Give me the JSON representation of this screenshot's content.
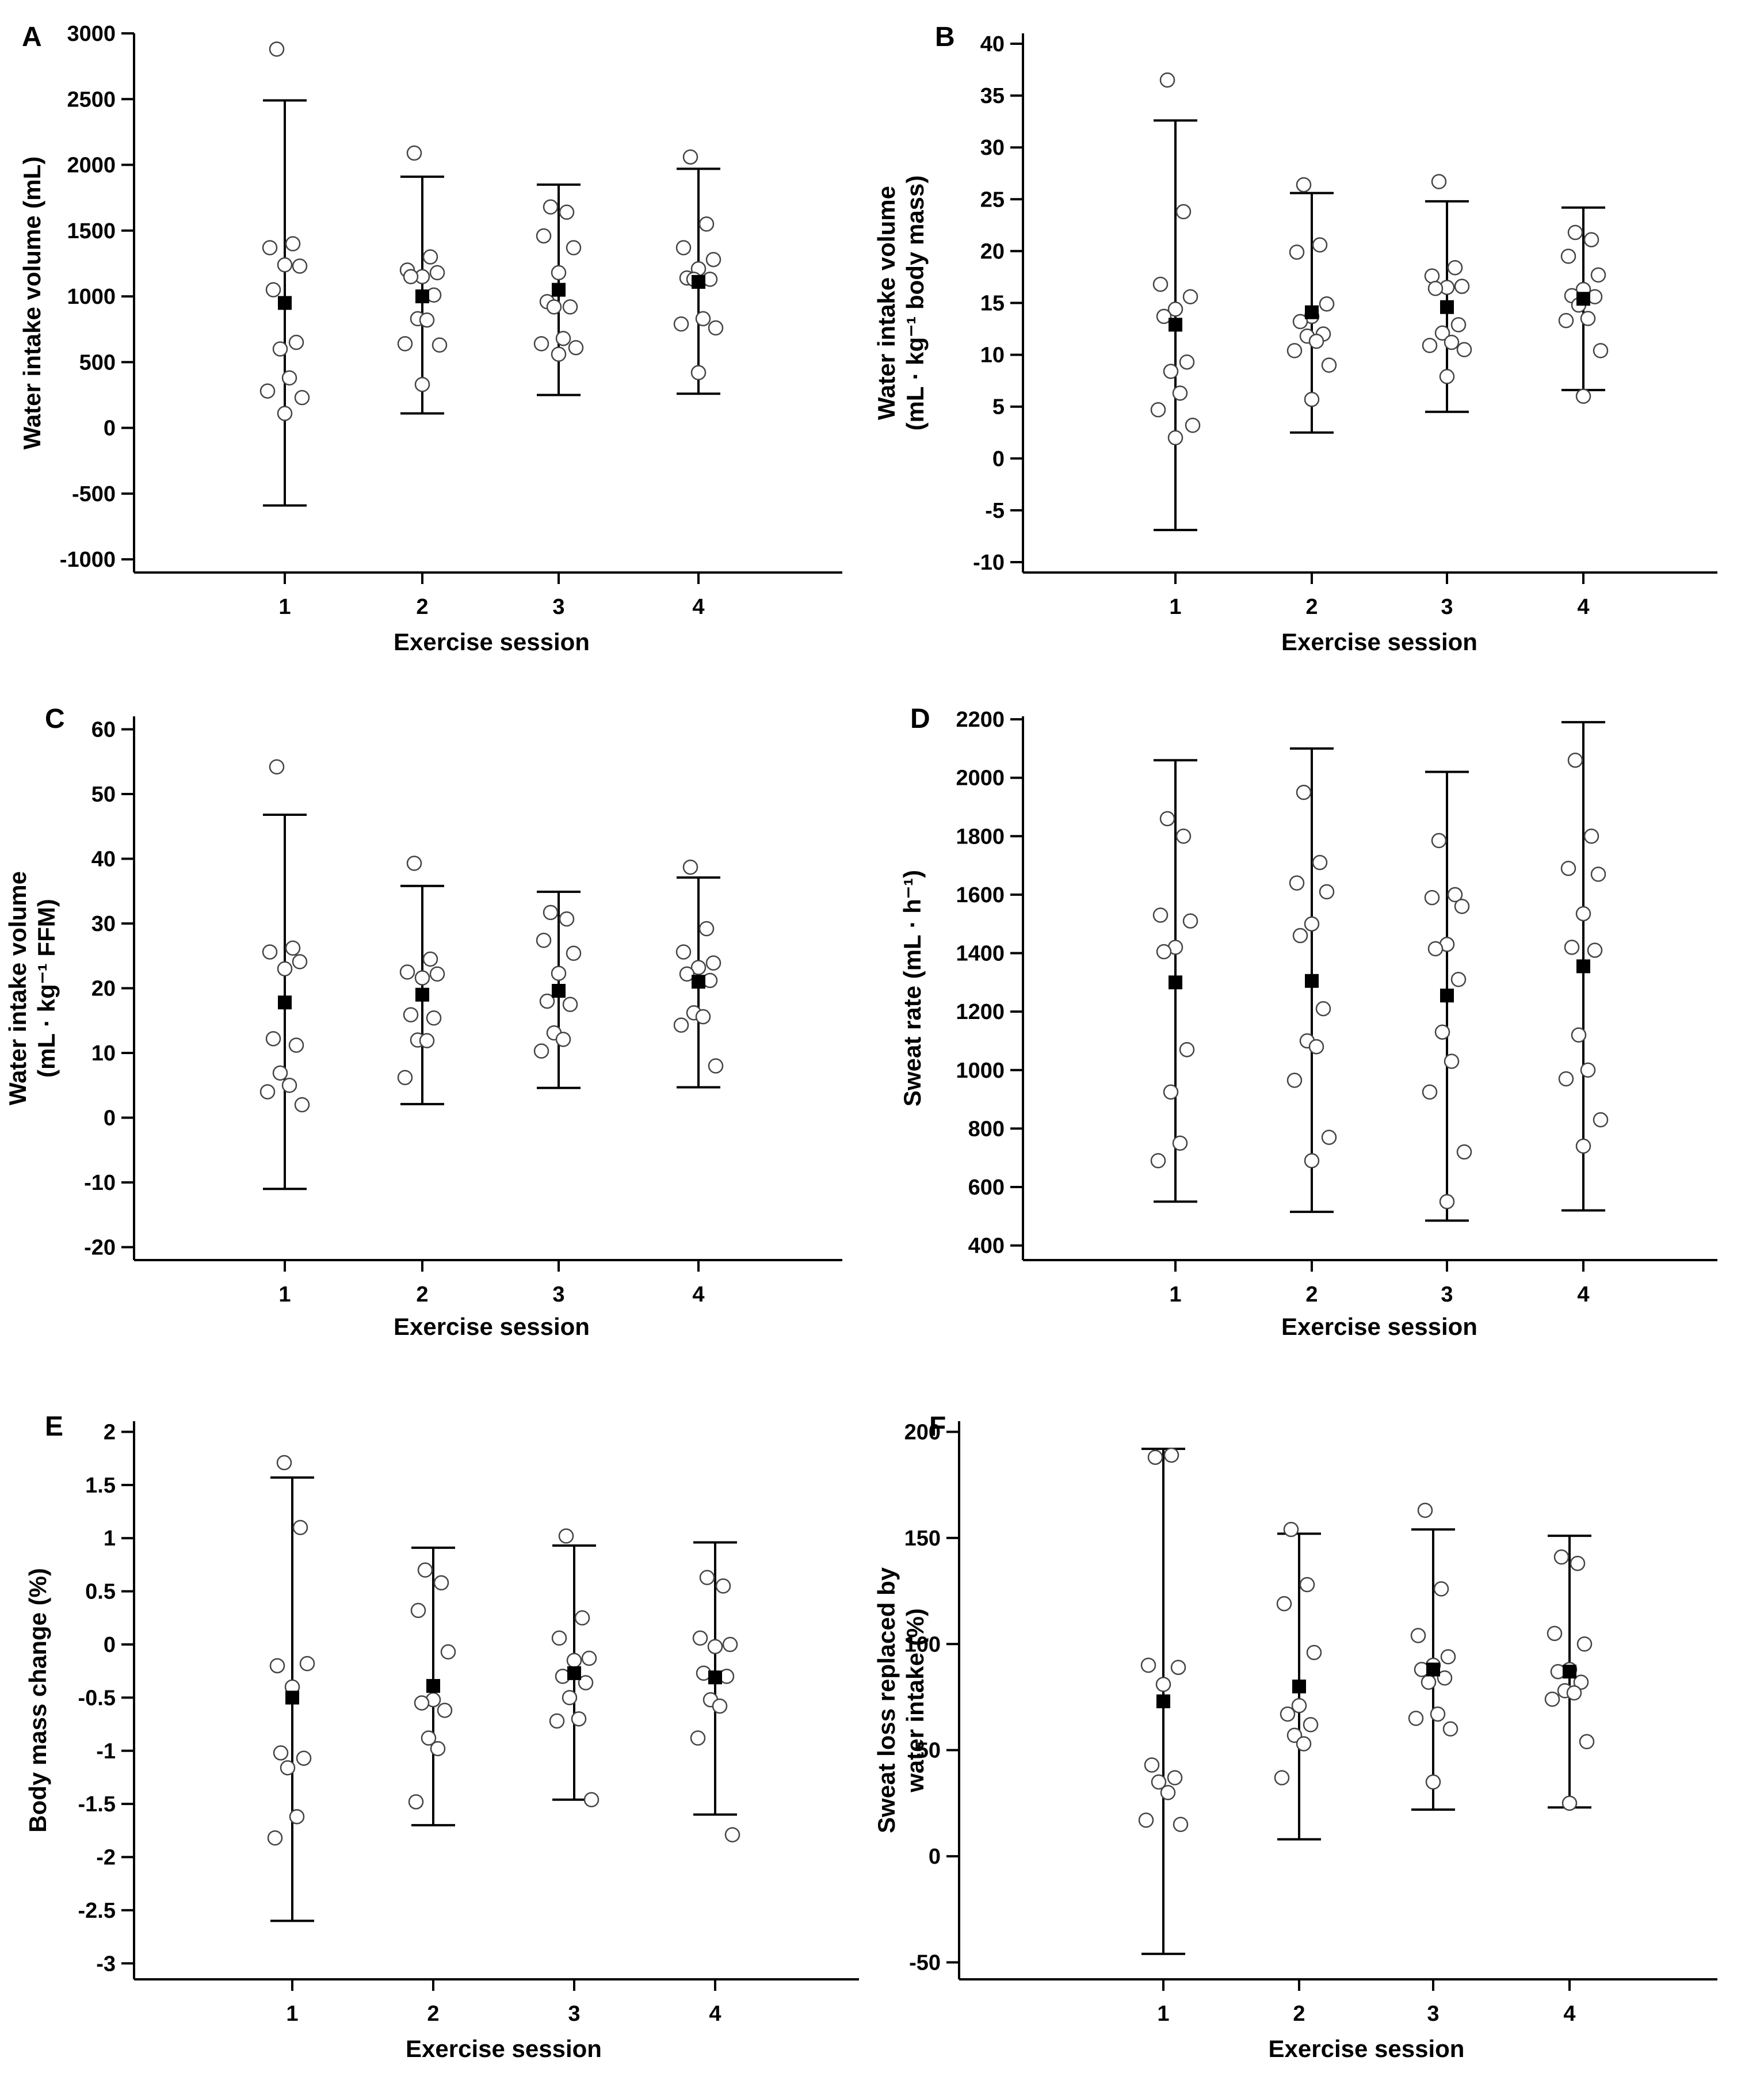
{
  "chart_data": [
    {
      "panel": "A",
      "type": "scatter",
      "xlabel": "Exercise session",
      "ylabel": [
        "Water intake volume (mL)"
      ],
      "categories": [
        "1",
        "2",
        "3",
        "4"
      ],
      "ylim": [
        -1100,
        3000
      ],
      "yticks": [
        3000,
        2500,
        2000,
        1500,
        1000,
        500,
        0,
        -500,
        -1000
      ],
      "summary": [
        {
          "session": "1",
          "mean": 950,
          "upper": 2490,
          "lower": -590
        },
        {
          "session": "2",
          "mean": 1000,
          "upper": 1910,
          "lower": 110
        },
        {
          "session": "3",
          "mean": 1050,
          "upper": 1850,
          "lower": 250
        },
        {
          "session": "4",
          "mean": 1110,
          "upper": 1970,
          "lower": 260
        }
      ],
      "points": [
        {
          "session": "1",
          "values": [
            2880,
            1400,
            1370,
            1230,
            1240,
            1050,
            650,
            600,
            380,
            280,
            230,
            110
          ]
        },
        {
          "session": "2",
          "values": [
            2090,
            1300,
            1200,
            1180,
            1150,
            1150,
            1010,
            830,
            820,
            640,
            630,
            330
          ]
        },
        {
          "session": "3",
          "values": [
            1680,
            1640,
            1460,
            1370,
            1180,
            960,
            920,
            920,
            680,
            640,
            610,
            560
          ]
        },
        {
          "session": "4",
          "values": [
            2060,
            1550,
            1370,
            1280,
            1210,
            1140,
            1130,
            1130,
            830,
            790,
            760,
            420
          ]
        }
      ]
    },
    {
      "panel": "B",
      "type": "scatter",
      "xlabel": "Exercise session",
      "ylabel": [
        "Water intake volume",
        "(mL · kg⁻¹ body mass)"
      ],
      "categories": [
        "1",
        "2",
        "3",
        "4"
      ],
      "ylim": [
        -11,
        41
      ],
      "yticks": [
        40,
        35,
        30,
        25,
        20,
        15,
        10,
        5,
        0,
        -5,
        -10
      ],
      "summary": [
        {
          "session": "1",
          "mean": 12.9,
          "upper": 32.6,
          "lower": -6.9
        },
        {
          "session": "2",
          "mean": 14.1,
          "upper": 25.6,
          "lower": 2.5
        },
        {
          "session": "3",
          "mean": 14.6,
          "upper": 24.8,
          "lower": 4.5
        },
        {
          "session": "4",
          "mean": 15.4,
          "upper": 24.2,
          "lower": 6.6
        }
      ],
      "points": [
        {
          "session": "1",
          "values": [
            36.5,
            23.8,
            16.8,
            15.6,
            14.4,
            13.7,
            9.3,
            8.4,
            6.3,
            4.7,
            3.2,
            2.0
          ]
        },
        {
          "session": "2",
          "values": [
            26.4,
            20.6,
            19.9,
            14.9,
            13.7,
            13.2,
            12.0,
            11.8,
            11.3,
            10.4,
            9.0,
            5.7
          ]
        },
        {
          "session": "3",
          "values": [
            26.7,
            18.4,
            17.6,
            16.6,
            16.5,
            16.4,
            12.9,
            12.1,
            11.2,
            10.9,
            10.5,
            7.9
          ]
        },
        {
          "session": "4",
          "values": [
            21.8,
            21.1,
            19.5,
            17.7,
            16.3,
            15.7,
            15.6,
            14.8,
            13.5,
            13.3,
            10.4,
            6.0
          ]
        }
      ]
    },
    {
      "panel": "C",
      "type": "scatter",
      "xlabel": "Exercise session",
      "ylabel": [
        "Water intake volume",
        "(mL · kg⁻¹ FFM)"
      ],
      "categories": [
        "1",
        "2",
        "3",
        "4"
      ],
      "ylim": [
        -22,
        62
      ],
      "yticks": [
        60,
        50,
        40,
        30,
        20,
        10,
        0,
        -10,
        -20
      ],
      "summary": [
        {
          "session": "1",
          "mean": 17.8,
          "upper": 46.8,
          "lower": -11.0
        },
        {
          "session": "2",
          "mean": 19.0,
          "upper": 35.8,
          "lower": 2.1
        },
        {
          "session": "3",
          "mean": 19.6,
          "upper": 34.9,
          "lower": 4.6
        },
        {
          "session": "4",
          "mean": 21.0,
          "upper": 37.1,
          "lower": 4.7
        }
      ],
      "points": [
        {
          "session": "1",
          "values": [
            54.2,
            26.2,
            25.6,
            24.1,
            23.0,
            12.2,
            11.2,
            6.9,
            5.0,
            4.0,
            2.0
          ]
        },
        {
          "session": "2",
          "values": [
            39.3,
            24.5,
            22.5,
            22.2,
            21.6,
            15.9,
            15.4,
            12.0,
            11.9,
            6.2
          ]
        },
        {
          "session": "3",
          "values": [
            31.7,
            30.7,
            27.4,
            25.4,
            22.3,
            18.0,
            17.5,
            13.1,
            12.1,
            10.3
          ]
        },
        {
          "session": "4",
          "values": [
            38.7,
            29.2,
            25.6,
            23.9,
            23.2,
            22.2,
            21.2,
            16.2,
            15.6,
            14.3,
            8.0
          ]
        }
      ]
    },
    {
      "panel": "D",
      "type": "scatter",
      "xlabel": "Exercise session",
      "ylabel": [
        "Sweat rate (mL · h⁻¹)"
      ],
      "categories": [
        "1",
        "2",
        "3",
        "4"
      ],
      "ylim": [
        350,
        2210
      ],
      "yticks": [
        2200,
        2000,
        1800,
        1600,
        1400,
        1200,
        1000,
        800,
        600,
        400
      ],
      "summary": [
        {
          "session": "1",
          "mean": 1300,
          "upper": 2060,
          "lower": 550
        },
        {
          "session": "2",
          "mean": 1305,
          "upper": 2100,
          "lower": 515
        },
        {
          "session": "3",
          "mean": 1255,
          "upper": 2020,
          "lower": 485
        },
        {
          "session": "4",
          "mean": 1355,
          "upper": 2190,
          "lower": 520
        }
      ],
      "points": [
        {
          "session": "1",
          "values": [
            1860,
            1800,
            1530,
            1510,
            1420,
            1405,
            1070,
            925,
            750,
            690
          ]
        },
        {
          "session": "2",
          "values": [
            1950,
            1710,
            1640,
            1610,
            1500,
            1460,
            1210,
            1100,
            1080,
            965,
            770,
            690
          ]
        },
        {
          "session": "3",
          "values": [
            1785,
            1600,
            1590,
            1560,
            1430,
            1415,
            1310,
            1130,
            1030,
            925,
            720,
            550
          ]
        },
        {
          "session": "4",
          "values": [
            2060,
            1800,
            1690,
            1670,
            1535,
            1420,
            1410,
            1120,
            1000,
            970,
            830,
            740
          ]
        }
      ]
    },
    {
      "panel": "E",
      "type": "scatter",
      "xlabel": "Exercise session",
      "ylabel": [
        "Body mass change (%)"
      ],
      "categories": [
        "1",
        "2",
        "3",
        "4"
      ],
      "ylim": [
        -3.15,
        2.1
      ],
      "yticks": [
        2.0,
        1.5,
        1.0,
        0.5,
        0.0,
        -0.5,
        -1.0,
        -1.5,
        -2.0,
        -2.5,
        -3.0
      ],
      "summary": [
        {
          "session": "1",
          "mean": -0.5,
          "upper": 1.57,
          "lower": -2.6
        },
        {
          "session": "2",
          "mean": -0.39,
          "upper": 0.91,
          "lower": -1.7
        },
        {
          "session": "3",
          "mean": -0.27,
          "upper": 0.93,
          "lower": -1.46
        },
        {
          "session": "4",
          "mean": -0.31,
          "upper": 0.96,
          "lower": -1.6
        }
      ],
      "points": [
        {
          "session": "1",
          "values": [
            1.71,
            1.1,
            -0.2,
            -0.18,
            -0.4,
            -1.02,
            -1.07,
            -1.16,
            -1.62,
            -1.82
          ]
        },
        {
          "session": "2",
          "values": [
            0.7,
            0.58,
            0.32,
            -0.07,
            -0.52,
            -0.55,
            -0.62,
            -0.88,
            -0.98,
            -1.48
          ]
        },
        {
          "session": "3",
          "values": [
            1.02,
            0.25,
            0.06,
            -0.13,
            -0.15,
            -0.3,
            -0.36,
            -0.5,
            -0.7,
            -0.72,
            -1.46
          ]
        },
        {
          "session": "4",
          "values": [
            0.63,
            0.55,
            0.06,
            0.0,
            -0.02,
            -0.27,
            -0.3,
            -0.52,
            -0.58,
            -0.88,
            -1.79
          ]
        }
      ]
    },
    {
      "panel": "F",
      "type": "scatter",
      "xlabel": "Exercise session",
      "ylabel": [
        "Sweat loss replaced by",
        "water intake (%)"
      ],
      "categories": [
        "1",
        "2",
        "3",
        "4"
      ],
      "ylim": [
        -58,
        205
      ],
      "yticks": [
        200,
        150,
        100,
        50,
        0,
        -50
      ],
      "summary": [
        {
          "session": "1",
          "mean": 73,
          "upper": 192,
          "lower": -46
        },
        {
          "session": "2",
          "mean": 80,
          "upper": 152,
          "lower": 8
        },
        {
          "session": "3",
          "mean": 88,
          "upper": 154,
          "lower": 22
        },
        {
          "session": "4",
          "mean": 87,
          "upper": 151,
          "lower": 23
        }
      ],
      "points": [
        {
          "session": "1",
          "values": [
            188,
            189,
            90,
            89,
            81,
            43,
            37,
            35,
            30,
            17,
            15
          ]
        },
        {
          "session": "2",
          "values": [
            154,
            128,
            119,
            96,
            71,
            67,
            62,
            57,
            53,
            37
          ]
        },
        {
          "session": "3",
          "values": [
            163,
            126,
            104,
            94,
            90,
            88,
            84,
            82,
            67,
            65,
            60,
            35
          ]
        },
        {
          "session": "4",
          "values": [
            141,
            138,
            105,
            100,
            88,
            87,
            82,
            78,
            77,
            74,
            54,
            25
          ]
        }
      ]
    }
  ]
}
